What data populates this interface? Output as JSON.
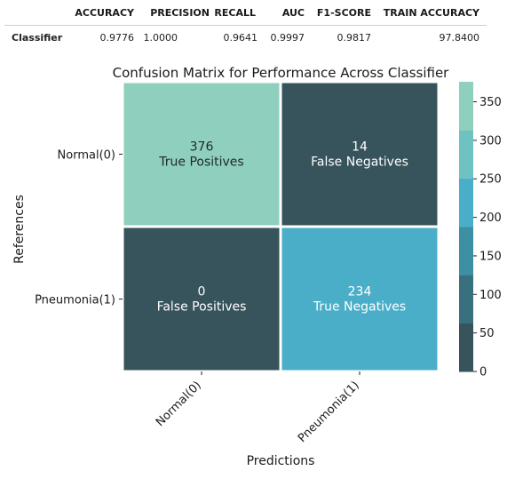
{
  "metrics_table": {
    "headers": [
      "ACCURACY",
      "PRECISION",
      "RECALL",
      "AUC",
      "F1-SCORE",
      "TRAIN ACCURACY"
    ],
    "row_label": "Classifier",
    "values": [
      "0.9776",
      "1.0000",
      "0.9641",
      "0.9997",
      "0.9817",
      "97.8400"
    ]
  },
  "chart_data": {
    "type": "heatmap",
    "title": "Confusion Matrix for Performance Across Classifier",
    "xlabel": "Predictions",
    "ylabel": "References",
    "x_categories": [
      "Normal(0)",
      "Pneumonia(1)"
    ],
    "y_categories": [
      "Normal(0)",
      "Pneumonia(1)"
    ],
    "values": [
      [
        376,
        14
      ],
      [
        0,
        234
      ]
    ],
    "cell_labels": [
      [
        "True Positives",
        "False Negatives"
      ],
      [
        "False Positives",
        "True Negatives"
      ]
    ],
    "colorbar": {
      "range": [
        0,
        376
      ],
      "ticks": [
        0,
        50,
        100,
        150,
        200,
        250,
        300,
        350
      ],
      "colors": [
        "#37535b",
        "#38707f",
        "#3d8fa4",
        "#4aaec8",
        "#6fc2c2",
        "#8fcfbd"
      ]
    },
    "grid": false
  }
}
